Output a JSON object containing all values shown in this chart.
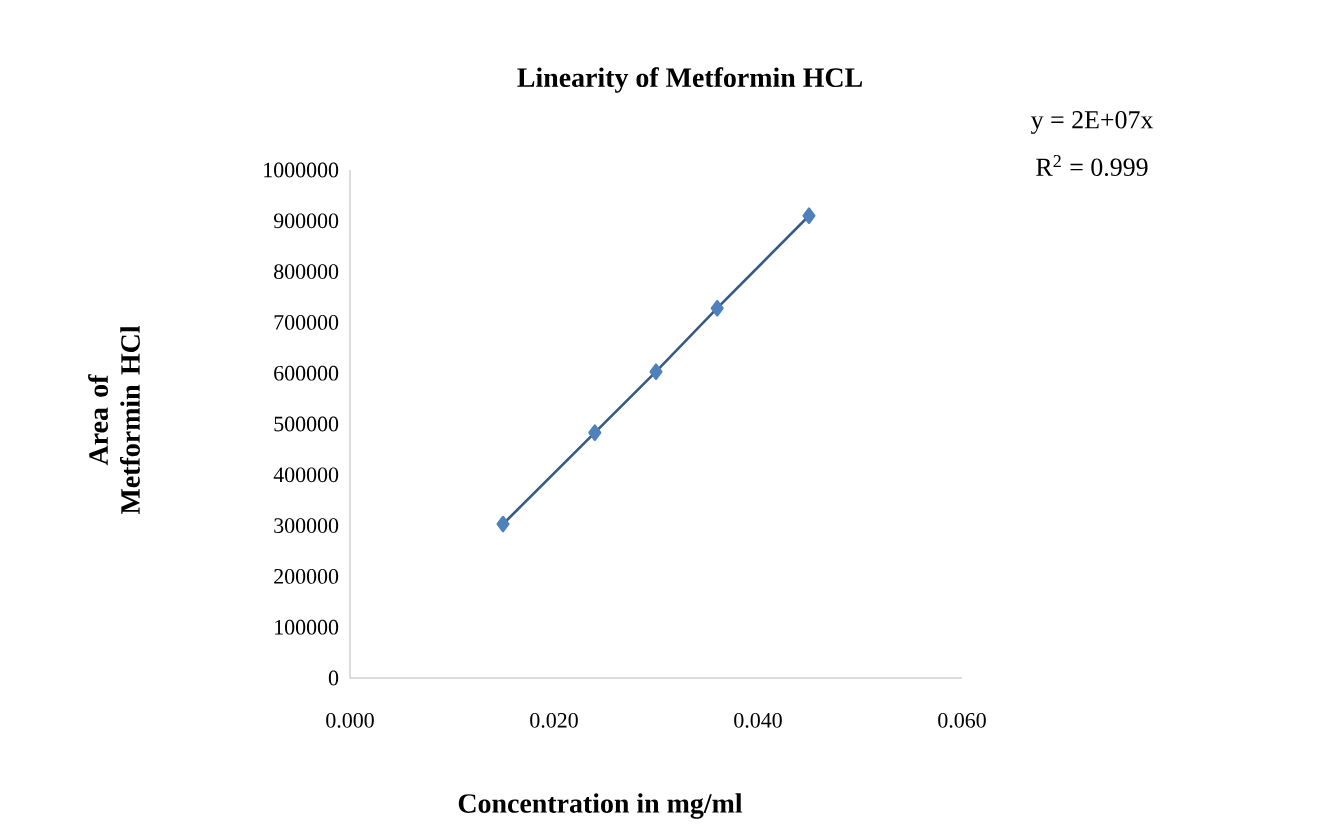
{
  "chart_data": {
    "type": "line",
    "title": "Linearity of Metformin HCL",
    "xlabel": "Concentration in mg/ml",
    "ylabel": "Area of Metformin HCl",
    "annotations": [
      "y = 2E+07x",
      "R$^{2}$ = 0.999"
    ],
    "x": [
      0.015,
      0.024,
      0.03,
      0.036,
      0.045
    ],
    "series": [
      {
        "color": "#4f81bd",
        "values": [
          303000,
          483000,
          603000,
          728000,
          910000
        ]
      }
    ],
    "marker": "diamond",
    "grid": false,
    "xlim": [
      0,
      0.06
    ],
    "xticks": [
      {
        "value": 0,
        "label": "0.000"
      },
      {
        "value": 0.02,
        "label": "0.020"
      },
      {
        "value": 0.04,
        "label": "0.040"
      },
      {
        "value": 0.06,
        "label": "0.060"
      }
    ],
    "ylim": [
      0,
      1000000
    ],
    "yticks": [
      0,
      100000,
      200000,
      300000,
      400000,
      500000,
      600000,
      700000,
      800000,
      900000,
      1000000
    ]
  }
}
